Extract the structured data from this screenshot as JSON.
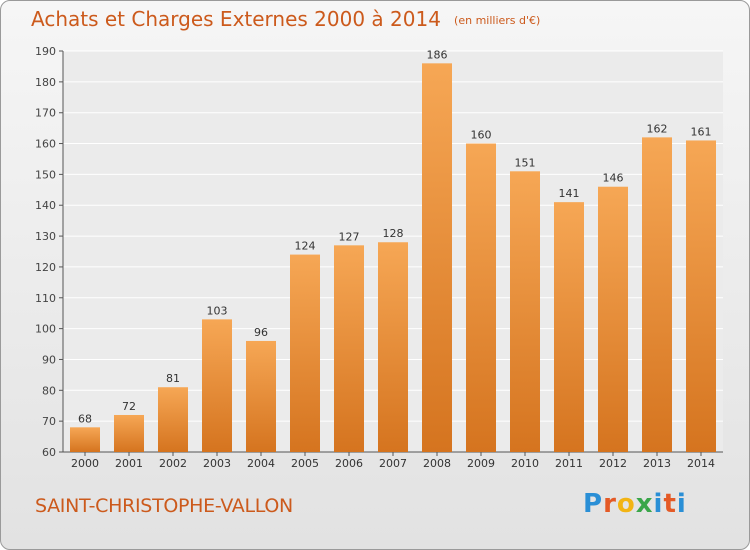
{
  "header": {
    "title": "Achats et Charges Externes 2000 à 2014",
    "subtitle": "(en milliers d'€)"
  },
  "footer": {
    "commune": "SAINT-CHRISTOPHE-VALLON",
    "logo_text": "Proxiti"
  },
  "colors": {
    "accent": "#cc5a1c",
    "bar_top": "#f6a755",
    "bar_bottom": "#d5741f"
  },
  "chart_data": {
    "type": "bar",
    "categories": [
      "2000",
      "2001",
      "2002",
      "2003",
      "2004",
      "2005",
      "2006",
      "2007",
      "2008",
      "2009",
      "2010",
      "2011",
      "2012",
      "2013",
      "2014"
    ],
    "values": [
      68,
      72,
      81,
      103,
      96,
      124,
      127,
      128,
      186,
      160,
      151,
      141,
      146,
      162,
      161
    ],
    "title": "Achats et Charges Externes 2000 à 2014",
    "subtitle": "(en milliers d'€)",
    "xlabel": "",
    "ylabel": "",
    "ylim": [
      60,
      190
    ],
    "yticks": [
      60,
      70,
      80,
      90,
      100,
      110,
      120,
      130,
      140,
      150,
      160,
      170,
      180,
      190
    ],
    "grid": true,
    "data_labels": true
  }
}
